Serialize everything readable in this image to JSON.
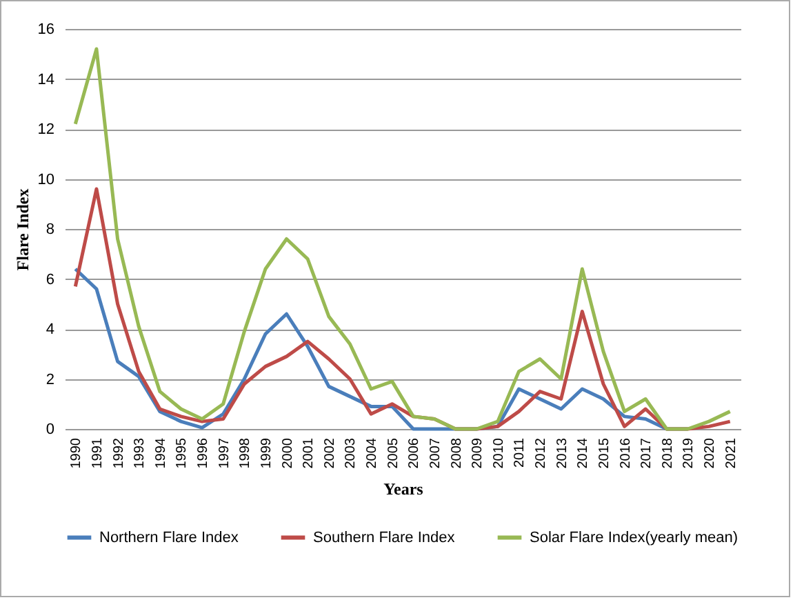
{
  "chart_data": {
    "type": "line",
    "xlabel": "Years",
    "ylabel": "Flare Index",
    "categories": [
      "1990",
      "1991",
      "1992",
      "1993",
      "1994",
      "1995",
      "1996",
      "1997",
      "1998",
      "1999",
      "2000",
      "2001",
      "2002",
      "2003",
      "2004",
      "2005",
      "2006",
      "2007",
      "2008",
      "2009",
      "2010",
      "2011",
      "2012",
      "2013",
      "2014",
      "2015",
      "2016",
      "2017",
      "2018",
      "2019",
      "2020",
      "2021"
    ],
    "series": [
      {
        "name": "Northern Flare Index",
        "color": "#4a7ebb",
        "values": [
          6.4,
          5.6,
          2.7,
          2.1,
          0.7,
          0.3,
          0.05,
          0.6,
          2.0,
          3.8,
          4.6,
          3.3,
          1.7,
          1.3,
          0.9,
          0.9,
          0,
          0,
          0,
          0,
          0.1,
          1.6,
          1.2,
          0.8,
          1.6,
          1.2,
          0.5,
          0.4,
          0,
          0,
          null,
          null
        ]
      },
      {
        "name": "Southern Flare Index",
        "color": "#be4b48",
        "values": [
          5.7,
          9.6,
          5.0,
          2.3,
          0.8,
          0.5,
          0.3,
          0.4,
          1.8,
          2.5,
          2.9,
          3.5,
          2.8,
          2.0,
          0.6,
          1.0,
          0.5,
          0.4,
          0,
          0,
          0.1,
          0.7,
          1.5,
          1.2,
          4.7,
          1.8,
          0.1,
          0.8,
          0,
          0,
          0.1,
          0.3
        ]
      },
      {
        "name": "Solar Flare Index(yearly mean)",
        "color": "#98b954",
        "values": [
          12.2,
          15.2,
          7.6,
          4.1,
          1.5,
          0.8,
          0.4,
          1.0,
          3.9,
          6.4,
          7.6,
          6.8,
          4.5,
          3.4,
          1.6,
          1.9,
          0.5,
          0.4,
          0,
          0,
          0.3,
          2.3,
          2.8,
          2.0,
          6.4,
          3.1,
          0.7,
          1.2,
          0,
          0,
          0.3,
          0.7
        ]
      }
    ],
    "ylim": [
      0,
      16
    ],
    "yticks": [
      0,
      2,
      4,
      6,
      8,
      10,
      12,
      14,
      16
    ],
    "grid": "y",
    "legend": "bottom",
    "marker": "none",
    "line_style": "solid"
  }
}
